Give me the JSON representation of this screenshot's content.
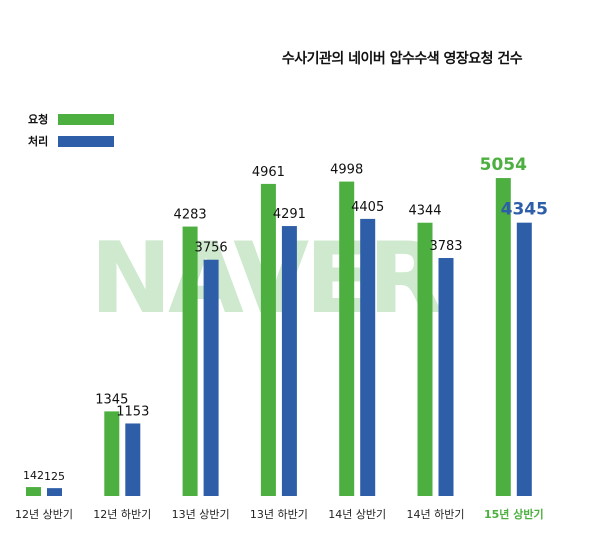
{
  "chart_data": {
    "type": "bar",
    "title": "수사기관의 네이버 압수수색 영장요청 건수",
    "watermark": "NAVER",
    "categories": [
      "12년 상반기",
      "12년 하반기",
      "13년 상반기",
      "13년 하반기",
      "14년 상반기",
      "14년 하반기",
      "15년 상반기"
    ],
    "series": [
      {
        "name": "요청",
        "color": "#4caf3f",
        "values": [
          142,
          1345,
          4283,
          4961,
          4998,
          4344,
          5054
        ]
      },
      {
        "name": "처리",
        "color": "#2f5ea8",
        "values": [
          125,
          1153,
          3756,
          4291,
          4405,
          3783,
          4345
        ]
      }
    ],
    "highlight_category_index": 6,
    "highlight_label_color": "#4caf3f",
    "ylim": [
      0,
      5500
    ],
    "legend_position": "top-left",
    "grid": false
  }
}
